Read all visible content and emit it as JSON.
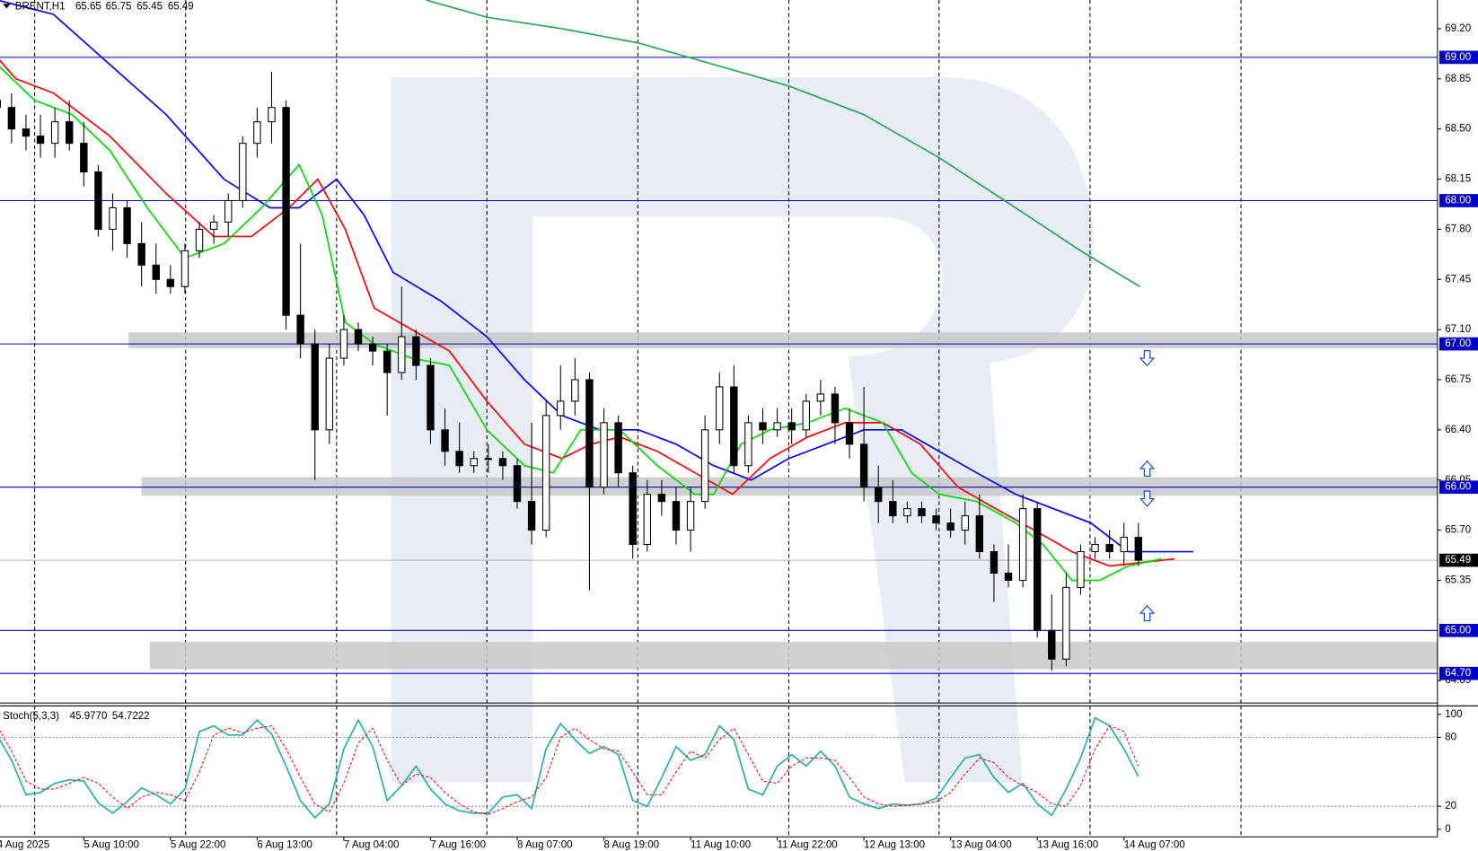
{
  "chart_data": [
    {
      "type": "candlestick",
      "title": "BRENT,H1",
      "candles": {
        "open": [
          68.7,
          68.65,
          68.5,
          68.45,
          68.4,
          68.55,
          68.4,
          68.2,
          67.8,
          67.95,
          67.7,
          67.55,
          67.45,
          67.4,
          67.65,
          67.8,
          67.85,
          68.0,
          68.4,
          68.55,
          68.65,
          67.2,
          67.0,
          66.4,
          66.9,
          67.1,
          67.0,
          66.95,
          66.8,
          67.05,
          66.85,
          66.4,
          66.25,
          66.15,
          66.2,
          66.2,
          66.15,
          65.9,
          65.7,
          66.5,
          66.6,
          66.75,
          66.0,
          66.45,
          66.1,
          65.6,
          65.95,
          65.9,
          65.7,
          65.9,
          66.4,
          66.7,
          66.15,
          66.45,
          66.4,
          66.45,
          66.4,
          66.6,
          66.65,
          66.45,
          66.3,
          66.0,
          65.9,
          65.8,
          65.85,
          65.8,
          65.75,
          65.7,
          65.8,
          65.55,
          65.4,
          65.35,
          65.85,
          65.0,
          64.8,
          65.3,
          65.55,
          65.6,
          65.55,
          65.65
        ],
        "high": [
          69.0,
          68.75,
          68.6,
          68.6,
          68.65,
          68.7,
          68.55,
          68.25,
          68.05,
          68.0,
          67.85,
          67.7,
          67.55,
          67.7,
          67.85,
          67.9,
          68.05,
          68.45,
          68.65,
          68.9,
          68.7,
          67.7,
          67.1,
          67.0,
          67.2,
          67.15,
          67.05,
          67.0,
          67.4,
          67.1,
          66.9,
          66.55,
          66.45,
          66.25,
          66.3,
          66.25,
          66.2,
          66.45,
          66.6,
          66.85,
          66.9,
          66.8,
          66.55,
          66.5,
          66.15,
          66.05,
          66.05,
          66.0,
          66.0,
          66.5,
          66.8,
          66.85,
          66.5,
          66.55,
          66.55,
          66.55,
          66.65,
          66.75,
          66.7,
          66.55,
          66.7,
          66.15,
          66.05,
          65.9,
          65.9,
          65.85,
          65.85,
          65.9,
          65.95,
          65.6,
          65.6,
          65.95,
          65.9,
          65.25,
          65.4,
          65.6,
          65.65,
          65.7,
          65.75,
          65.75
        ],
        "low": [
          68.5,
          68.4,
          68.35,
          68.3,
          68.3,
          68.35,
          68.1,
          67.75,
          67.65,
          67.6,
          67.4,
          67.35,
          67.35,
          67.35,
          67.6,
          67.7,
          67.75,
          67.95,
          68.3,
          68.4,
          67.1,
          66.9,
          66.05,
          66.3,
          66.85,
          66.95,
          66.85,
          66.5,
          66.75,
          66.75,
          66.3,
          66.15,
          66.1,
          66.1,
          66.1,
          66.05,
          65.85,
          65.6,
          65.65,
          66.4,
          66.5,
          65.28,
          65.95,
          66.0,
          65.5,
          65.55,
          65.8,
          65.6,
          65.55,
          65.85,
          66.3,
          66.1,
          66.1,
          66.3,
          66.35,
          66.3,
          66.35,
          66.5,
          66.3,
          66.2,
          65.9,
          65.75,
          65.75,
          65.75,
          65.75,
          65.7,
          65.65,
          65.6,
          65.5,
          65.2,
          65.3,
          65.3,
          64.95,
          64.72,
          64.75,
          65.25,
          65.5,
          65.5,
          65.45,
          65.45
        ],
        "close": [
          68.65,
          68.5,
          68.45,
          68.4,
          68.55,
          68.4,
          68.2,
          67.8,
          67.95,
          67.7,
          67.55,
          67.45,
          67.4,
          67.65,
          67.8,
          67.85,
          68.0,
          68.4,
          68.55,
          68.65,
          67.2,
          67.0,
          66.4,
          66.9,
          67.1,
          67.0,
          66.95,
          66.8,
          67.05,
          66.85,
          66.4,
          66.25,
          66.15,
          66.2,
          66.2,
          66.15,
          65.9,
          65.7,
          66.5,
          66.6,
          66.75,
          66.0,
          66.45,
          66.1,
          65.6,
          65.95,
          65.9,
          65.7,
          65.9,
          66.4,
          66.7,
          66.15,
          66.45,
          66.4,
          66.45,
          66.4,
          66.6,
          66.65,
          66.45,
          66.3,
          66.0,
          65.9,
          65.8,
          65.85,
          65.8,
          65.75,
          65.7,
          65.8,
          65.55,
          65.4,
          65.35,
          65.85,
          65.0,
          64.8,
          65.3,
          65.55,
          65.6,
          65.55,
          65.65,
          65.49
        ]
      },
      "up_color": "#ffffff",
      "down_color": "#000000",
      "xlim": [
        0.2,
        99.7
      ],
      "ylim": [
        64.5,
        69.4
      ],
      "yticks": [
        {
          "value": 69.2,
          "label": "69.20"
        },
        68.85,
        {
          "value": 68.5,
          "label": "68.50"
        },
        68.15,
        {
          "value": 67.8,
          "label": "67.80"
        },
        67.45,
        {
          "value": 67.1,
          "label": "67.10"
        },
        66.75,
        {
          "value": 66.4,
          "label": "66.40"
        },
        66.05,
        {
          "value": 65.7,
          "label": "65.70"
        },
        65.35,
        64.65
      ],
      "vgrid": [
        2.6,
        13.05,
        23.5,
        33.9,
        44.35,
        54.8,
        65.2,
        75.65,
        86.1
      ],
      "series": [
        {
          "color": "#22aa55",
          "x": [
            29.7,
            33.9,
            39.1,
            44.4,
            49.6,
            54.8,
            60,
            65.2,
            70.5,
            75,
            79.1
          ],
          "values": [
            69.4,
            69.28,
            69.2,
            69.1,
            68.95,
            68.8,
            68.6,
            68.3,
            67.95,
            67.65,
            67.4
          ]
        },
        {
          "color": "#0000ff",
          "x": [
            0,
            3.9,
            7.8,
            11.7,
            15.7,
            18.9,
            20.9,
            23.5,
            25.4,
            27.4,
            30.7,
            33.9,
            36.5,
            39.1,
            41.7,
            44.4,
            47,
            49.6,
            52.2,
            54.8,
            57.4,
            60,
            62.6,
            65.2,
            67.8,
            70.5,
            73.1,
            75.7,
            78.3,
            82.8
          ],
          "values": [
            69.4,
            69.3,
            68.95,
            68.6,
            68.15,
            67.95,
            67.95,
            68.15,
            67.9,
            67.5,
            67.3,
            67.05,
            66.75,
            66.5,
            66.4,
            66.4,
            66.3,
            66.15,
            66.05,
            66.2,
            66.3,
            66.4,
            66.4,
            66.25,
            66.1,
            65.95,
            65.85,
            65.75,
            65.55,
            65.55
          ]
        },
        {
          "color": "#ff0000",
          "x": [
            0,
            1.3,
            3.9,
            7.8,
            11.7,
            15,
            17.6,
            20.2,
            22.2,
            24.1,
            26.1,
            28.7,
            31.3,
            33.9,
            36.5,
            39.1,
            41.1,
            43.1,
            45.7,
            48.3,
            50.9,
            53.5,
            56.1,
            58.7,
            61.3,
            63.9,
            66.5,
            69.1,
            71.8,
            74.4,
            77,
            81.5
          ],
          "values": [
            69.0,
            68.85,
            68.75,
            68.45,
            68.05,
            67.75,
            67.75,
            67.95,
            68.15,
            67.8,
            67.25,
            67.1,
            66.95,
            66.6,
            66.3,
            66.2,
            66.3,
            66.35,
            66.25,
            66.1,
            65.95,
            66.2,
            66.35,
            66.45,
            66.45,
            66.3,
            66.0,
            65.85,
            65.7,
            65.55,
            65.45,
            65.5
          ]
        },
        {
          "color": "#00dd00",
          "x": [
            0,
            2.6,
            5.2,
            7.8,
            10.4,
            13,
            15.7,
            18.3,
            19.6,
            20.9,
            22.5,
            24.1,
            26.1,
            28.7,
            31.3,
            33.9,
            36.5,
            38.5,
            40.4,
            43.1,
            45.7,
            48.3,
            49.6,
            51.5,
            53.5,
            56.1,
            58.7,
            61.3,
            63.3,
            65.2,
            67.8,
            70.5,
            72.4,
            74.4,
            76.3,
            78.3,
            80.6
          ],
          "values": [
            68.95,
            68.7,
            68.6,
            68.35,
            67.95,
            67.6,
            67.7,
            67.95,
            68.1,
            68.25,
            67.9,
            67.15,
            67.0,
            66.9,
            66.85,
            66.4,
            66.15,
            66.1,
            66.4,
            66.4,
            66.15,
            65.95,
            65.95,
            66.3,
            66.4,
            66.45,
            66.55,
            66.45,
            66.1,
            65.95,
            65.9,
            65.75,
            65.6,
            65.35,
            65.35,
            65.45,
            65.5
          ]
        }
      ],
      "levels": [
        {
          "value": 69,
          "label": "69.00"
        },
        {
          "value": 68,
          "label": "68.00"
        },
        {
          "value": 67,
          "label": "67.00"
        },
        {
          "value": 66,
          "label": "66.00"
        },
        {
          "value": 65,
          "label": "65.00"
        },
        {
          "value": 64.7,
          "label": "64.70"
        }
      ],
      "level_color": "#0000c8",
      "current_price": 65.49,
      "zones": [
        {
          "x": 9.1,
          "from": 66.97,
          "to": 67.08
        },
        {
          "x": 10.0,
          "from": 65.94,
          "to": 66.07
        },
        {
          "x": 10.57,
          "from": 64.73,
          "to": 64.92
        }
      ],
      "arrows": [
        {
          "x": 79.6,
          "y": 66.9,
          "direction": "down"
        },
        {
          "x": 79.6,
          "y": 66.13,
          "direction": "up"
        },
        {
          "x": 79.6,
          "y": 65.92,
          "direction": "down"
        },
        {
          "x": 79.6,
          "y": 65.12,
          "direction": "up"
        }
      ]
    },
    {
      "type": "line",
      "title": "Stoch(5,3,3)",
      "readout": [
        {
          "value": 45.977,
          "label": "45.9770"
        },
        {
          "value": 54.7222,
          "label": "54.7222"
        }
      ],
      "xlim": [
        0.2,
        99.7
      ],
      "ylim": [
        -6.6,
        106.6
      ],
      "yticks": [
        100,
        80,
        20,
        0
      ],
      "levels": [
        80,
        20
      ],
      "xticks": [
        {
          "value": 0,
          "label": "4 Aug 2025"
        },
        {
          "value": 6,
          "label": "5 Aug 10:00"
        },
        {
          "value": 12,
          "label": "5 Aug 22:00"
        },
        {
          "value": 18,
          "label": "6 Aug 13:00"
        },
        {
          "value": 24,
          "label": "7 Aug 04:00"
        },
        {
          "value": 30,
          "label": "7 Aug 16:00"
        },
        {
          "value": 36,
          "label": "8 Aug 07:00"
        },
        {
          "value": 42,
          "label": "8 Aug 19:00"
        },
        {
          "value": 48,
          "label": "11 Aug 10:00"
        },
        {
          "value": 54,
          "label": "11 Aug 22:00"
        },
        {
          "value": 60,
          "label": "12 Aug 13:00"
        },
        {
          "value": 66,
          "label": "13 Aug 04:00"
        },
        {
          "value": 72,
          "label": "13 Aug 16:00"
        },
        {
          "value": 78,
          "label": "14 Aug 07:00"
        }
      ],
      "series": [
        {
          "color": "#20b2aa",
          "dashed": false,
          "values": [
            82,
            60,
            30,
            32,
            40,
            43,
            42,
            23,
            14,
            24,
            36,
            30,
            22,
            35,
            85,
            90,
            82,
            82,
            95,
            83,
            55,
            25,
            10,
            22,
            70,
            95,
            72,
            25,
            38,
            55,
            35,
            22,
            16,
            14,
            14,
            28,
            30,
            18,
            70,
            92,
            78,
            66,
            72,
            65,
            25,
            20,
            45,
            72,
            60,
            65,
            90,
            78,
            35,
            30,
            55,
            65,
            55,
            68,
            55,
            28,
            22,
            18,
            22,
            21,
            22,
            27,
            45,
            62,
            65,
            45,
            32,
            40,
            22,
            12,
            35,
            62,
            97,
            90,
            70,
            45.977
          ]
        },
        {
          "color": "#ff0000",
          "dashed": true,
          "values": [
            90,
            68,
            42,
            35,
            35,
            40,
            45,
            40,
            28,
            18,
            28,
            32,
            30,
            25,
            50,
            82,
            88,
            84,
            88,
            90,
            70,
            45,
            22,
            15,
            40,
            75,
            88,
            60,
            38,
            48,
            45,
            32,
            22,
            15,
            13,
            18,
            24,
            28,
            45,
            80,
            88,
            78,
            70,
            68,
            50,
            30,
            30,
            50,
            68,
            62,
            78,
            88,
            65,
            42,
            40,
            55,
            62,
            62,
            60,
            45,
            28,
            22,
            20,
            21,
            22,
            24,
            32,
            48,
            62,
            58,
            45,
            38,
            32,
            22,
            20,
            38,
            70,
            90,
            85,
            54.7222
          ]
        }
      ]
    }
  ]
}
